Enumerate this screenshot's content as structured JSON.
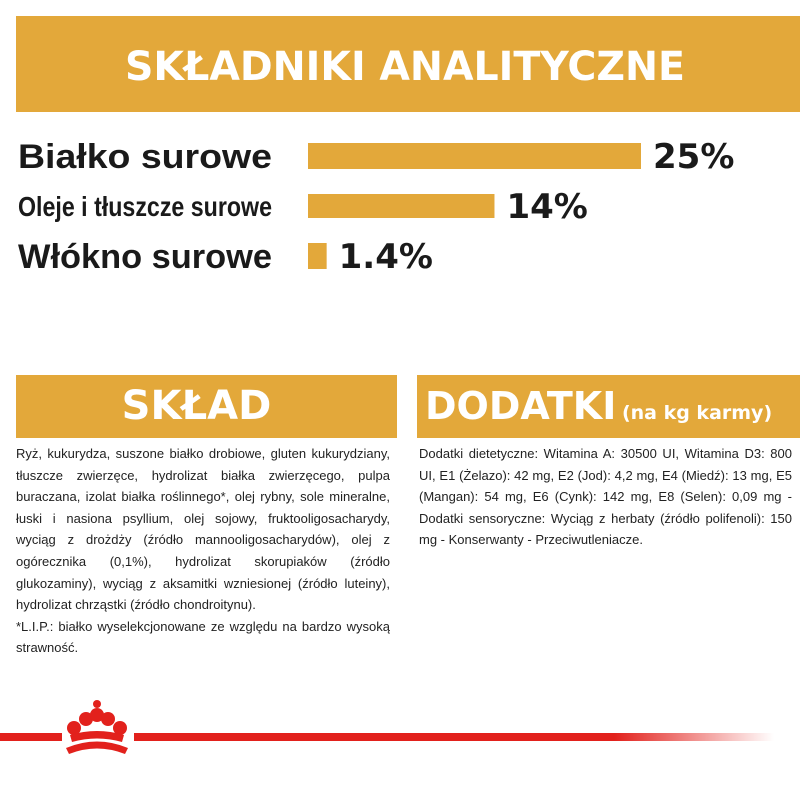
{
  "chart_data": {
    "type": "bar",
    "title": "SKŁADNIKI ANALITYCZNE",
    "categories": [
      "Białko surowe",
      "Oleje i tłuszcze surowe",
      "Włókno surowe"
    ],
    "values": [
      25,
      14,
      1.4
    ],
    "value_labels": [
      "25%",
      "14%",
      "1.4%"
    ],
    "color": "#e3a83a"
  },
  "sklad": {
    "title": "SKŁAD",
    "text": "Ryż, kukurydza, suszone białko drobiowe, gluten kukurydziany, tłuszcze zwierzęce, hydrolizat białka zwierzęcego, pulpa buraczana, izolat białka roślinnego*, olej rybny, sole mineralne, łuski i nasiona psyllium, olej sojowy, fruktooligosacharydy, wyciąg z drożdży (źródło mannooligosacharydów), olej z ogórecznika (0,1%), hydrolizat skorupiaków (źródło glukozaminy), wyciąg z aksamitki wzniesionej (źródło luteiny), hydrolizat chrząstki (źródło chondroitynu).",
    "note": "*L.I.P.: białko wyselekcjonowane ze względu na bardzo wysoką strawność."
  },
  "dodatki": {
    "title": "DODATKI",
    "subtitle": "(na kg karmy)",
    "text": "Dodatki dietetyczne: Witamina A: 30500 UI, Witamina D3: 800 UI, E1 (Żelazo): 42 mg, E2 (Jod): 4,2 mg, E4 (Miedź): 13 mg, E5 (Mangan): 54 mg, E6 (Cynk): 142 mg, E8 (Selen): 0,09 mg - Dodatki sensoryczne: Wyciąg z herbaty (źródło polifenoli): 150 mg - Konserwanty - Przeciwutleniacze."
  }
}
